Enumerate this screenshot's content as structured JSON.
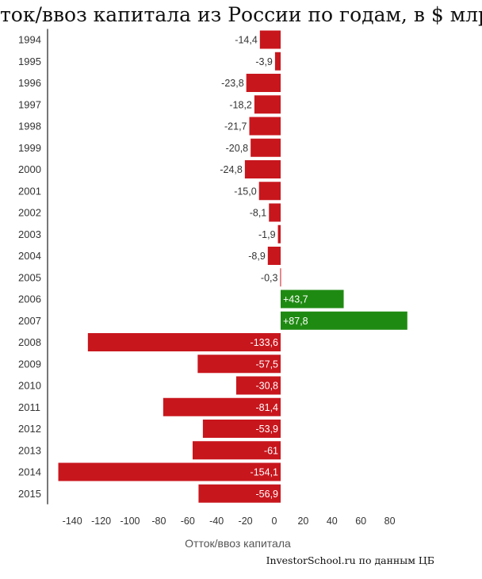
{
  "chart_data": {
    "type": "bar",
    "orientation": "horizontal",
    "title": "Отток/ввоз капитала из России по годам, в $ млрд.",
    "xlabel": "Отток/ввоз капитала",
    "ylabel": "",
    "source": "InvestorSchool.ru по данным ЦБ",
    "categories": [
      "1994",
      "1995",
      "1996",
      "1997",
      "1998",
      "1999",
      "2000",
      "2001",
      "2002",
      "2003",
      "2004",
      "2005",
      "2006",
      "2007",
      "2008",
      "2009",
      "2010",
      "2011",
      "2012",
      "2013",
      "2014",
      "2015"
    ],
    "values": [
      -14.4,
      -3.9,
      -23.8,
      -18.2,
      -21.7,
      -20.8,
      -24.8,
      -15.0,
      -8.1,
      -1.9,
      -8.9,
      -0.3,
      43.7,
      87.8,
      -133.6,
      -57.5,
      -30.8,
      -81.4,
      -53.9,
      -61,
      -154.1,
      -56.9
    ],
    "value_labels": [
      "-14,4",
      "-3,9",
      "-23,8",
      "-18,2",
      "-21,7",
      "-20,8",
      "-24,8",
      "-15,0",
      "-8,1",
      "-1,9",
      "-8,9",
      "-0,3",
      "+43,7",
      "+87,8",
      "-133,6",
      "-57,5",
      "-30,8",
      "-81,4",
      "-53,9",
      "-61",
      "-154,1",
      "-56,9"
    ],
    "x_ticks": [
      "-140",
      "-120",
      "-100",
      "-80",
      "-60",
      "-40",
      "-20",
      "0",
      "20",
      "40",
      "60",
      "80"
    ],
    "x_tick_values": [
      -140,
      -120,
      -100,
      -80,
      -60,
      -40,
      -20,
      0,
      20,
      40,
      60,
      80
    ],
    "xlim": [
      -150,
      95
    ],
    "grid": false,
    "colors": {
      "negative": "#c8161d",
      "positive": "#1f8a12"
    }
  }
}
